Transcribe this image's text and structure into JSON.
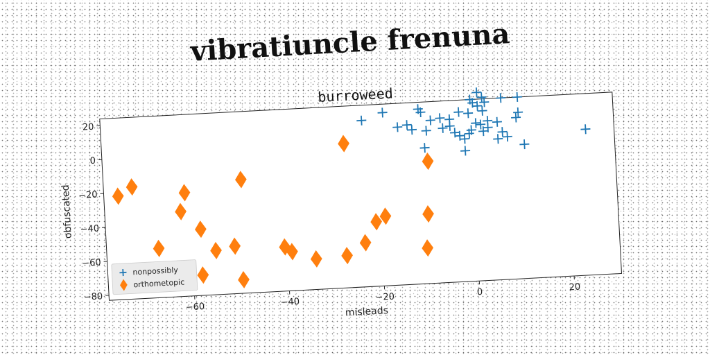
{
  "suptitle": "vibratiuncle frenuna",
  "chart_data": {
    "type": "scatter",
    "title": "burroweed",
    "xlabel": "misleads",
    "ylabel": "obfuscated",
    "xlim": [
      -78,
      30
    ],
    "ylim": [
      -83,
      24
    ],
    "xticks": [
      -60,
      -40,
      -20,
      0,
      20
    ],
    "yticks": [
      20,
      0,
      -20,
      -40,
      -60,
      -80
    ],
    "xtick_labels": [
      "−60",
      "−40",
      "−20",
      "0",
      "20"
    ],
    "ytick_labels": [
      "20",
      "0",
      "−20",
      "−40",
      "−60",
      "−80"
    ],
    "grid": false,
    "legend_position": "lower-left",
    "series": [
      {
        "name": "nonpossibly",
        "marker": "plus",
        "color": "#1f77b4",
        "points": [
          [
            1.5,
            28
          ],
          [
            2.5,
            25
          ],
          [
            3,
            22
          ],
          [
            0.5,
            22
          ],
          [
            1.5,
            20
          ],
          [
            0,
            24
          ],
          [
            2.5,
            17
          ],
          [
            -0.5,
            16
          ],
          [
            6.5,
            24
          ],
          [
            10,
            24
          ],
          [
            -11,
            20
          ],
          [
            -18.5,
            19
          ],
          [
            -10.5,
            18
          ],
          [
            -23,
            15
          ],
          [
            -13.5,
            11
          ],
          [
            -15.5,
            10
          ],
          [
            -12.5,
            8
          ],
          [
            -2.5,
            17
          ],
          [
            -4.5,
            13
          ],
          [
            -6.5,
            14
          ],
          [
            -8.5,
            13
          ],
          [
            -4.5,
            9
          ],
          [
            -6,
            8
          ],
          [
            -9.5,
            7
          ],
          [
            -3.5,
            5
          ],
          [
            -2.5,
            3
          ],
          [
            -1.5,
            1
          ],
          [
            1,
            10
          ],
          [
            2,
            9
          ],
          [
            3.5,
            11
          ],
          [
            5.5,
            10
          ],
          [
            9.5,
            12
          ],
          [
            10,
            15
          ],
          [
            0,
            6
          ],
          [
            -0.5,
            4
          ],
          [
            2.5,
            5
          ],
          [
            3.5,
            7
          ],
          [
            6.5,
            4
          ],
          [
            7.5,
            1
          ],
          [
            5.5,
            0
          ],
          [
            -10,
            -3
          ],
          [
            -1.5,
            -6
          ],
          [
            11,
            -4
          ],
          [
            24,
            3
          ]
        ]
      },
      {
        "name": "orthometopic",
        "marker": "thin_diamond",
        "color": "#ff7f0e",
        "points": [
          [
            -72,
            -17
          ],
          [
            -75,
            -22
          ],
          [
            -61,
            -22
          ],
          [
            -62,
            -33
          ],
          [
            -49,
            -16
          ],
          [
            -27,
            2
          ],
          [
            -9.5,
            -11
          ],
          [
            -58,
            -44
          ],
          [
            -67,
            -54
          ],
          [
            -55,
            -57
          ],
          [
            -51,
            -55
          ],
          [
            -40.5,
            -57
          ],
          [
            -39,
            -60
          ],
          [
            -34,
            -65
          ],
          [
            -27.5,
            -64
          ],
          [
            -23.5,
            -57
          ],
          [
            -21,
            -45
          ],
          [
            -19,
            -42
          ],
          [
            -10,
            -42
          ],
          [
            -10.5,
            -62
          ],
          [
            -58,
            -71
          ],
          [
            -49.5,
            -75
          ]
        ]
      }
    ]
  }
}
